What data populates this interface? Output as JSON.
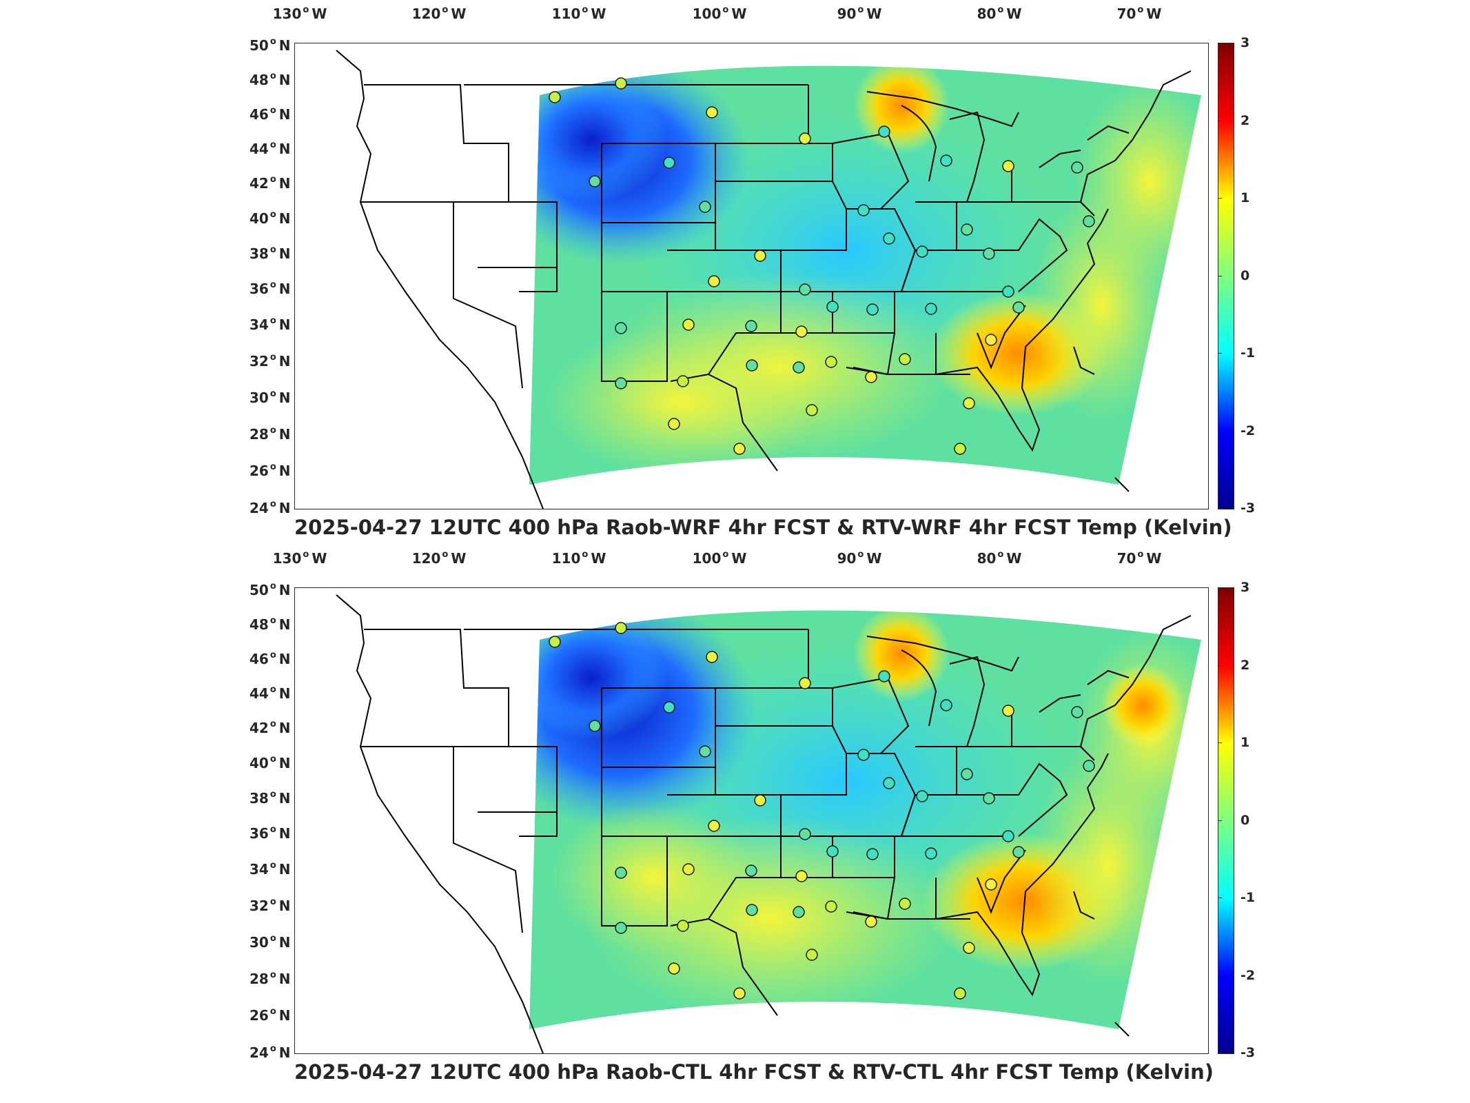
{
  "panels": [
    {
      "title": "2025-04-27 12UTC 400 hPa Raob-WRF 4hr FCST & RTV-WRF 4hr FCST Temp (Kelvin)"
    },
    {
      "title": "2025-04-27 12UTC 400 hPa Raob-CTL 4hr FCST & RTV-CTL 4hr FCST Temp (Kelvin)"
    }
  ],
  "axes": {
    "lon_labels": [
      "130",
      "120",
      "110",
      "100",
      "90",
      "80",
      "70"
    ],
    "lon_suffix": "W",
    "lat_labels": [
      "50",
      "48",
      "46",
      "44",
      "42",
      "40",
      "38",
      "36",
      "34",
      "32",
      "30",
      "28",
      "26",
      "24"
    ],
    "lat_suffix": "N",
    "degree_symbol": "o"
  },
  "colorbar": {
    "ticks": [
      "3",
      "2",
      "1",
      "0",
      "-1",
      "-2",
      "-3"
    ],
    "range": [
      -3,
      3
    ],
    "colormap": "jet",
    "colors": [
      "#00008f",
      "#0000ff",
      "#00ffff",
      "#7fff7f",
      "#ffff00",
      "#ff0000",
      "#800000"
    ]
  },
  "map": {
    "lon_range": [
      -131,
      -64
    ],
    "lat_range": [
      24,
      50
    ],
    "field_background": "#54e0a8"
  }
}
